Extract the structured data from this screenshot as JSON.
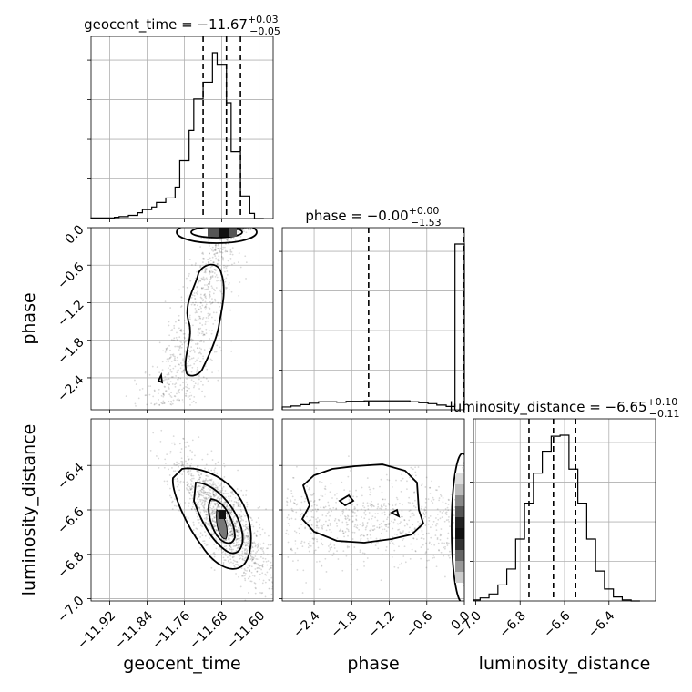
{
  "chart_data": {
    "type": "corner",
    "parameters": [
      "geocent_time",
      "phase",
      "luminosity_distance"
    ],
    "titles": {
      "geocent_time": {
        "text": "geocent_time = −11.67",
        "plus": "+0.03",
        "minus": "−0.05"
      },
      "phase": {
        "text": "phase = −0.00",
        "plus": "+0.00",
        "minus": "−1.53"
      },
      "luminosity_distance": {
        "text": "luminosity_distance = −6.65",
        "plus": "+0.10",
        "minus": "−0.11"
      }
    },
    "axis_labels": {
      "geocent_time": "geocent_time",
      "phase": "phase",
      "luminosity_distance": "luminosity_distance"
    },
    "ranges": {
      "geocent_time": [
        -11.96,
        -11.57
      ],
      "phase": [
        -2.91,
        0.0
      ],
      "luminosity_distance": [
        -7.01,
        -6.19
      ]
    },
    "ticks": {
      "geocent_time": [
        -11.92,
        -11.84,
        -11.76,
        -11.68,
        -11.6
      ],
      "geocent_time_labels": [
        "−11.92",
        "−11.84",
        "−11.76",
        "−11.68",
        "−11.60"
      ],
      "phase": [
        -2.4,
        -1.8,
        -1.2,
        -0.6,
        0.0
      ],
      "phase_labels": [
        "−2.4",
        "−1.8",
        "−1.2",
        "−0.6",
        "0.0"
      ],
      "luminosity_distance": [
        -7.0,
        -6.8,
        -6.6,
        -6.4
      ],
      "luminosity_distance_labels": [
        "−7.0",
        "−6.8",
        "−6.6",
        "−6.4"
      ]
    },
    "quantiles": {
      "geocent_time": [
        -11.72,
        -11.67,
        -11.64
      ],
      "phase": [
        -1.53,
        -0.0
      ],
      "luminosity_distance": [
        -6.76,
        -6.65,
        -6.55
      ]
    },
    "histograms": {
      "geocent_time": {
        "edges": [
          -11.96,
          -11.94,
          -11.93,
          -11.91,
          -11.9,
          -11.88,
          -11.86,
          -11.85,
          -11.83,
          -11.82,
          -11.8,
          -11.78,
          -11.77,
          -11.75,
          -11.74,
          -11.72,
          -11.7,
          -11.69,
          -11.67,
          -11.66,
          -11.64,
          -11.62,
          -11.61,
          -11.59
        ],
        "counts": [
          1,
          1,
          1,
          2,
          3,
          5,
          9,
          14,
          18,
          25,
          32,
          49,
          90,
          137,
          186,
          212,
          258,
          240,
          180,
          104,
          35,
          8,
          0
        ]
      },
      "phase": {
        "edges": [
          -2.91,
          -2.77,
          -2.62,
          -2.48,
          -2.33,
          -2.18,
          -2.04,
          -1.89,
          -1.75,
          -1.6,
          -1.46,
          -1.31,
          -1.16,
          -1.02,
          -0.87,
          -0.73,
          -0.58,
          -0.44,
          -0.29,
          -0.15,
          0.0
        ],
        "counts": [
          6,
          8,
          11,
          14,
          17,
          17,
          16,
          18,
          18,
          19,
          19,
          19,
          19,
          19,
          17,
          15,
          13,
          10,
          7,
          355
        ]
      },
      "luminosity_distance": {
        "edges": [
          -7.01,
          -6.98,
          -6.94,
          -6.9,
          -6.86,
          -6.82,
          -6.78,
          -6.74,
          -6.7,
          -6.66,
          -6.62,
          -6.58,
          -6.54,
          -6.5,
          -6.46,
          -6.42,
          -6.38,
          -6.34,
          -6.3,
          -6.26
        ],
        "counts": [
          1,
          3,
          7,
          16,
          32,
          62,
          98,
          128,
          150,
          165,
          166,
          132,
          98,
          62,
          30,
          12,
          4,
          1,
          0
        ]
      }
    },
    "correlation": {
      "geocent_time_vs_luminosity_distance": "negative",
      "phase_peak": 0.0,
      "luminosity_distance_peak": -6.65
    }
  }
}
